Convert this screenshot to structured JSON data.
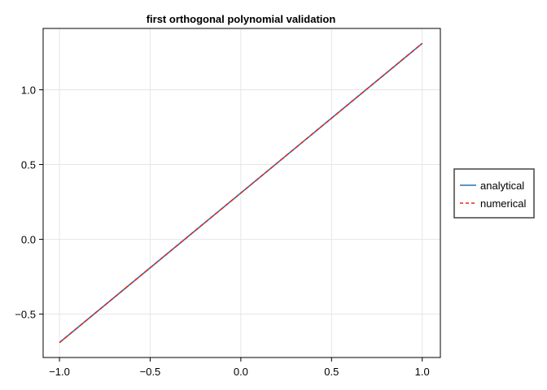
{
  "chart_data": {
    "type": "line",
    "title": "first orthogonal polynomial validation",
    "xlabel": "",
    "ylabel": "",
    "xlim": [
      -1.09,
      1.1
    ],
    "ylim": [
      -0.79,
      1.41
    ],
    "grid": true,
    "legend_position": "right",
    "x_ticks": [
      -1.0,
      -0.5,
      0.0,
      0.5,
      1.0
    ],
    "x_tick_labels": [
      "−1.0",
      "−0.5",
      "0.0",
      "0.5",
      "1.0"
    ],
    "y_ticks": [
      -0.5,
      0.0,
      0.5,
      1.0
    ],
    "y_tick_labels": [
      "−0.5",
      "0.0",
      "0.5",
      "1.0"
    ],
    "series": [
      {
        "name": "analytical",
        "style": "solid",
        "color": "#1f77b4",
        "x": [
          -1.0,
          1.0
        ],
        "y": [
          -0.69,
          1.31
        ]
      },
      {
        "name": "numerical",
        "style": "dashed",
        "color": "#e6261f",
        "x": [
          -1.0,
          1.0
        ],
        "y": [
          -0.69,
          1.31
        ]
      }
    ]
  }
}
